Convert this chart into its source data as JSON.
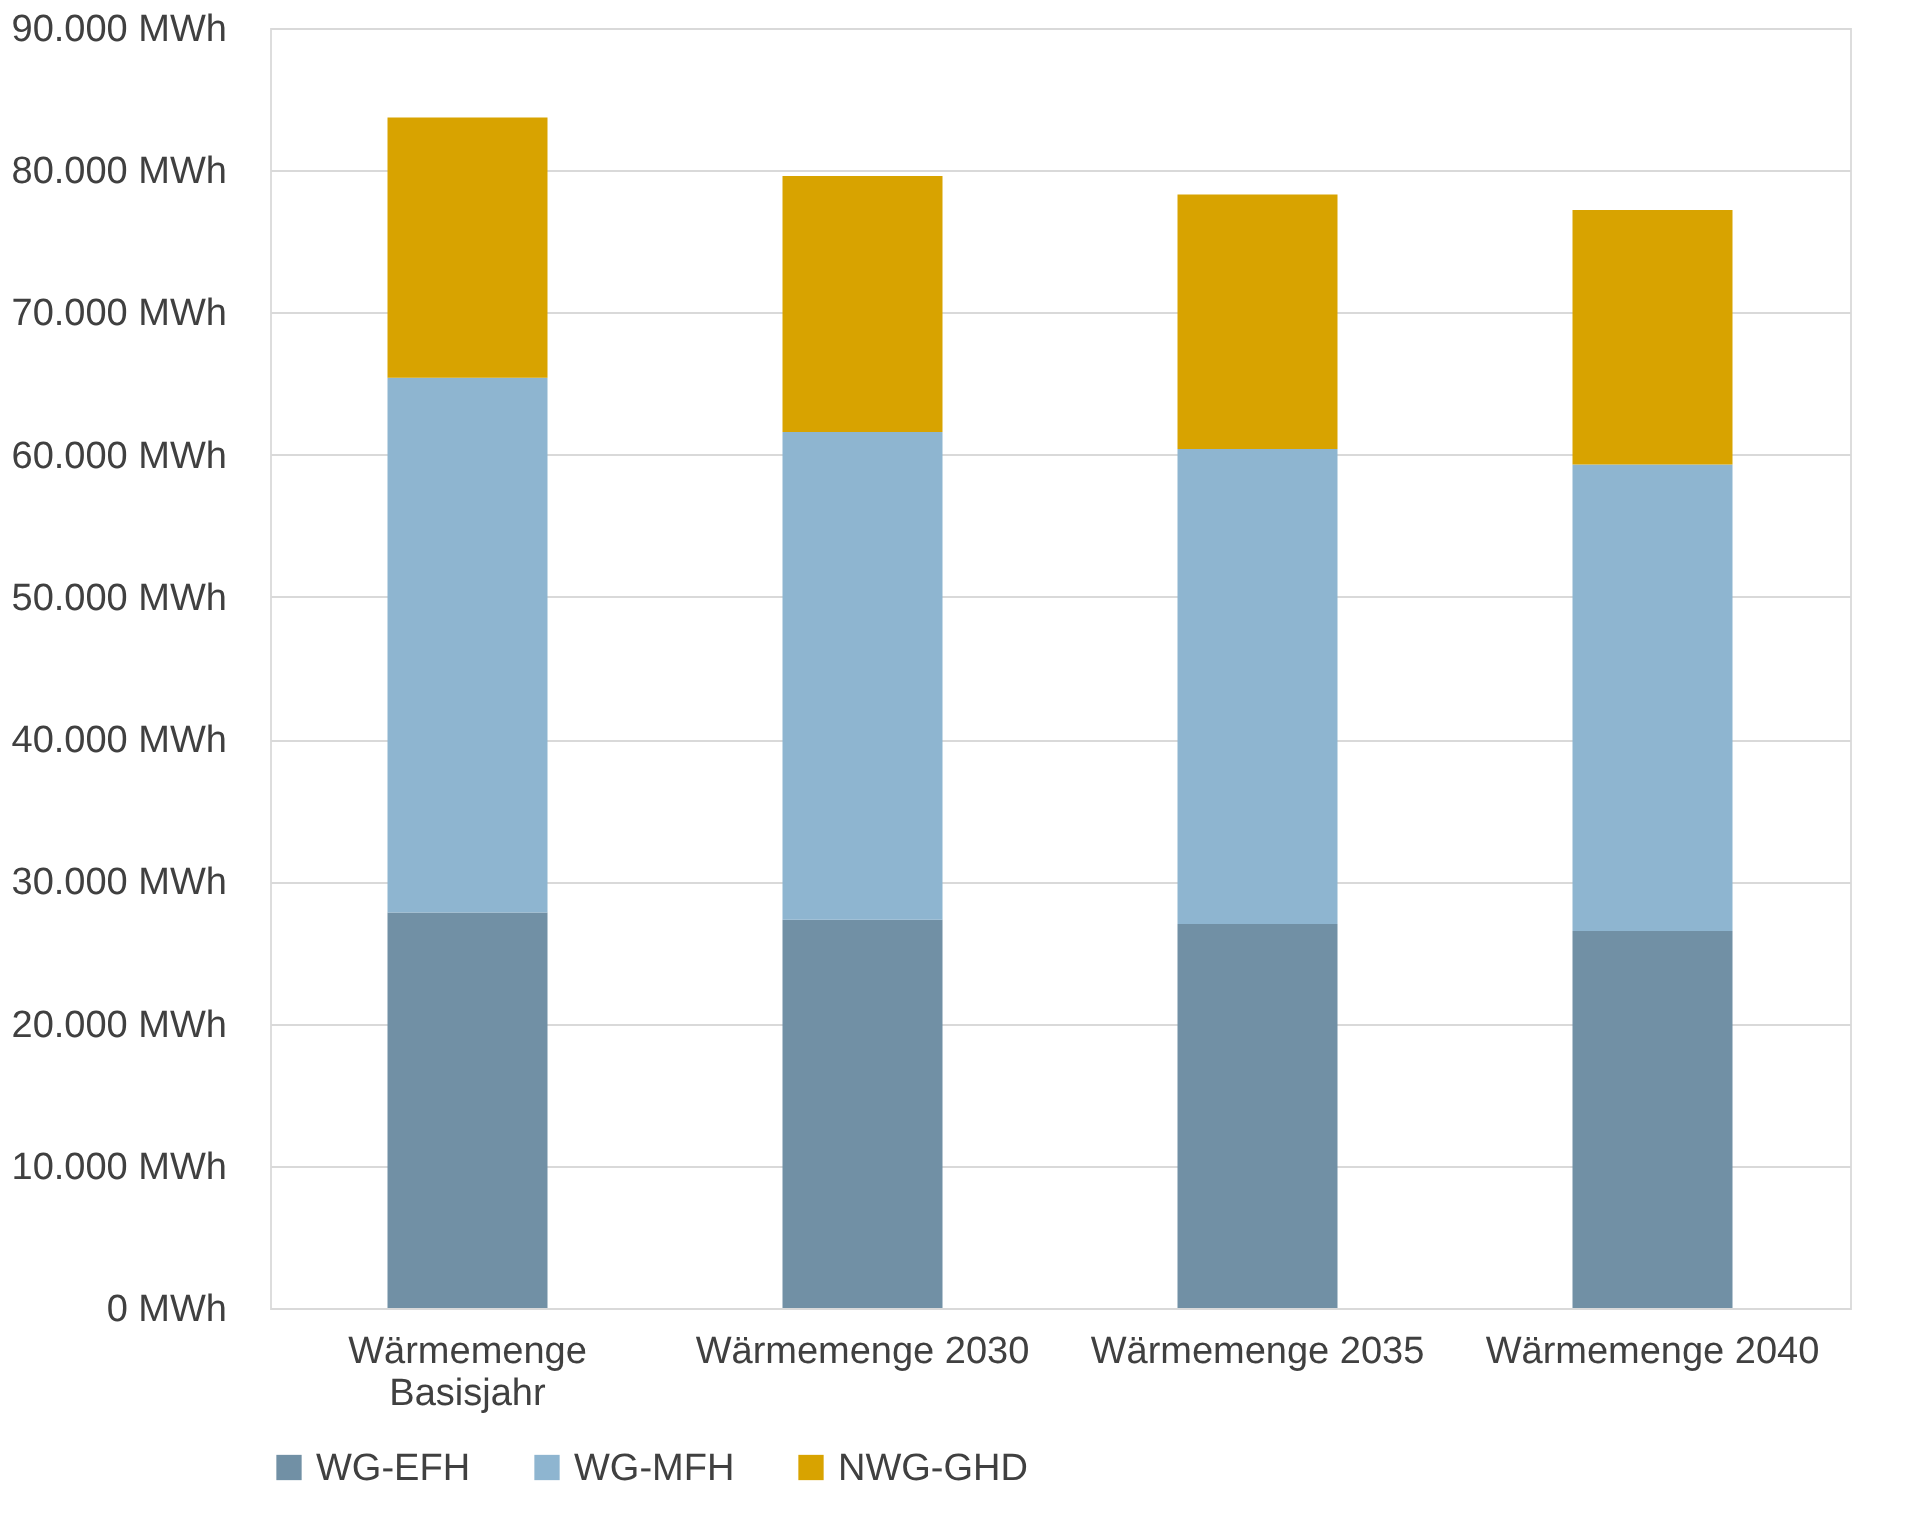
{
  "chart_data": {
    "type": "bar",
    "stacked": true,
    "categories": [
      "Wärmemenge Basisjahr",
      "Wärmemenge 2030",
      "Wärmemenge 2035",
      "Wärmemenge 2040"
    ],
    "series": [
      {
        "name": "WG-EFH",
        "color": "#7190a5",
        "values": [
          27800,
          27300,
          27000,
          26500
        ]
      },
      {
        "name": "WG-MFH",
        "color": "#8eb5d0",
        "values": [
          37600,
          34300,
          33400,
          32800
        ]
      },
      {
        "name": "NWG-GHD",
        "color": "#d8a300",
        "values": [
          18300,
          18000,
          17900,
          17900
        ]
      }
    ],
    "ylim": [
      0,
      90000
    ],
    "yticks": [
      {
        "value": 0,
        "label": "0 MWh"
      },
      {
        "value": 10000,
        "label": "10.000 MWh"
      },
      {
        "value": 20000,
        "label": "20.000 MWh"
      },
      {
        "value": 30000,
        "label": "30.000 MWh"
      },
      {
        "value": 40000,
        "label": "40.000 MWh"
      },
      {
        "value": 50000,
        "label": "50.000 MWh"
      },
      {
        "value": 60000,
        "label": "60.000 MWh"
      },
      {
        "value": 70000,
        "label": "70.000 MWh"
      },
      {
        "value": 80000,
        "label": "80.000 MWh"
      },
      {
        "value": 90000,
        "label": "90.000 MWh"
      }
    ],
    "grid": "y",
    "legend": "bottom"
  }
}
